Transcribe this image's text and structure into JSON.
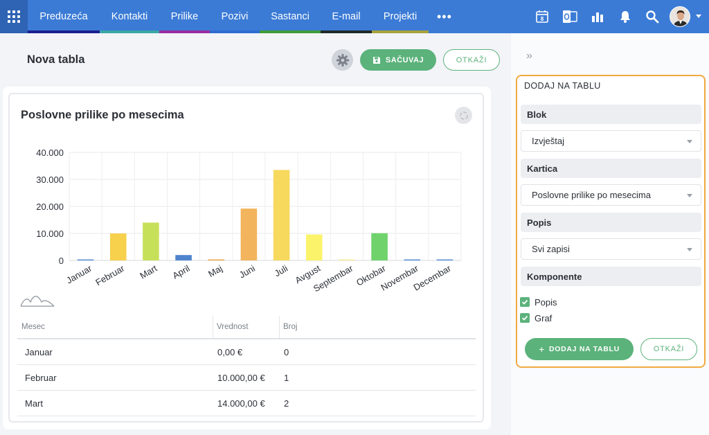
{
  "nav": {
    "tabs": [
      {
        "label": "Preduzeća",
        "color": "#1b1f8f"
      },
      {
        "label": "Kontakti",
        "color": "#3aa7a5"
      },
      {
        "label": "Prilike",
        "color": "#9a2ca1"
      },
      {
        "label": "Pozivi",
        "color": "#2f6bd1"
      },
      {
        "label": "Sastanci",
        "color": "#3f9b3a"
      },
      {
        "label": "E-mail",
        "color": "#1e2a2a"
      },
      {
        "label": "Projekti",
        "color": "#a8a23a"
      }
    ],
    "more_label": "•••",
    "calendar_day": "8"
  },
  "header": {
    "title": "Nova tabla",
    "save_label": "SAČUVAJ",
    "cancel_label": "OTKAŽI"
  },
  "card": {
    "title": "Poslovne prilike po mesecima"
  },
  "chart_data": {
    "type": "bar",
    "categories": [
      "Januar",
      "Februar",
      "Mart",
      "April",
      "Maj",
      "Juni",
      "Juli",
      "Avgust",
      "Septembar",
      "Oktobar",
      "Novembar",
      "Decembar"
    ],
    "values": [
      0,
      10000,
      14000,
      2000,
      0,
      19200,
      33500,
      9600,
      0,
      10100,
      0,
      0
    ],
    "colors": [
      "#5a8fd6",
      "#f7d04c",
      "#c7e05a",
      "#4f84cc",
      "#f2a64a",
      "#f2b45c",
      "#f7d95e",
      "#fbf36a",
      "#f8ee9a",
      "#6fd26b",
      "#5a8fd6",
      "#5a8fd6"
    ],
    "yticks": [
      "40.000",
      "30.000",
      "20.000",
      "10.000",
      "0"
    ],
    "ylim": [
      0,
      40000
    ],
    "grid": true
  },
  "table": {
    "headers": [
      "Mesec",
      "Vrednost",
      "Broj"
    ],
    "rows": [
      [
        "Januar",
        "0,00 €",
        "0"
      ],
      [
        "Februar",
        "10.000,00 €",
        "1"
      ],
      [
        "Mart",
        "14.000,00 €",
        "2"
      ]
    ]
  },
  "panel": {
    "title": "DODAJ NA TABLU",
    "blok_label": "Blok",
    "blok_value": "Izvještaj",
    "kartica_label": "Kartica",
    "kartica_value": "Poslovne prilike po mesecima",
    "popis_label": "Popis",
    "popis_value": "Svi zapisi",
    "komponente_label": "Komponente",
    "check_popis": "Popis",
    "check_graf": "Graf",
    "add_label": "DODAJ NA TABLU",
    "cancel_label": "OTKAŽI"
  }
}
